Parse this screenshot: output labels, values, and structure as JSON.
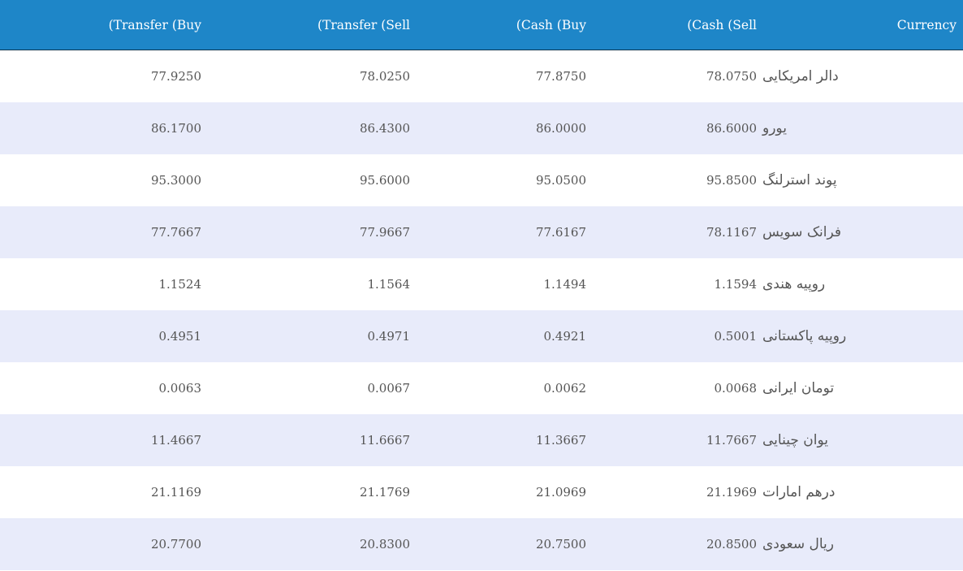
{
  "table": {
    "headers": {
      "transfer_buy": "(Transfer (Buy",
      "transfer_sell": "(Transfer (Sell",
      "cash_buy": "(Cash (Buy",
      "cash_sell": "(Cash (Sell",
      "currency": "Currency"
    },
    "rows": [
      {
        "transfer_buy": "77.9250",
        "transfer_sell": "78.0250",
        "cash_buy": "77.8750",
        "cash_sell": "78.0750",
        "currency": "دالر امریکایی"
      },
      {
        "transfer_buy": "86.1700",
        "transfer_sell": "86.4300",
        "cash_buy": "86.0000",
        "cash_sell": "86.6000",
        "currency": "یورو"
      },
      {
        "transfer_buy": "95.3000",
        "transfer_sell": "95.6000",
        "cash_buy": "95.0500",
        "cash_sell": "95.8500",
        "currency": "پوند استرلنگ"
      },
      {
        "transfer_buy": "77.7667",
        "transfer_sell": "77.9667",
        "cash_buy": "77.6167",
        "cash_sell": "78.1167",
        "currency": "فرانک سویس"
      },
      {
        "transfer_buy": "1.1524",
        "transfer_sell": "1.1564",
        "cash_buy": "1.1494",
        "cash_sell": "1.1594",
        "currency": "روپیه هندی"
      },
      {
        "transfer_buy": "0.4951",
        "transfer_sell": "0.4971",
        "cash_buy": "0.4921",
        "cash_sell": "0.5001",
        "currency": "روپیه پاکستانی"
      },
      {
        "transfer_buy": "0.0063",
        "transfer_sell": "0.0067",
        "cash_buy": "0.0062",
        "cash_sell": "0.0068",
        "currency": "تومان ایرانی"
      },
      {
        "transfer_buy": "11.4667",
        "transfer_sell": "11.6667",
        "cash_buy": "11.3667",
        "cash_sell": "11.7667",
        "currency": "یوان چینایی"
      },
      {
        "transfer_buy": "21.1169",
        "transfer_sell": "21.1769",
        "cash_buy": "21.0969",
        "cash_sell": "21.1969",
        "currency": "درهم امارات"
      },
      {
        "transfer_buy": "20.7700",
        "transfer_sell": "20.8300",
        "cash_buy": "20.7500",
        "cash_sell": "20.8500",
        "currency": "ریال سعودی"
      }
    ]
  },
  "colors": {
    "header_bg": "#1e86c8",
    "row_alt_bg": "#e8ebfa",
    "row_bg": "#ffffff"
  }
}
